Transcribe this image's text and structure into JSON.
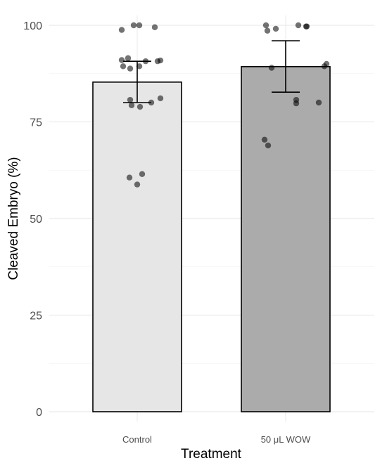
{
  "chart_data": {
    "type": "bar",
    "title": "",
    "xlabel": "Treatment",
    "ylabel": "Cleaved Embryo (%)",
    "ylim": [
      0,
      100
    ],
    "yticks": [
      0,
      25,
      50,
      75,
      100
    ],
    "grid": true,
    "legend": "none",
    "categories": [
      "Control",
      "50 μL WOW"
    ],
    "values": [
      85.3,
      89.3
    ],
    "error_bars": [
      {
        "low": 80.0,
        "high": 90.7
      },
      {
        "low": 82.7,
        "high": 96.0
      }
    ],
    "bar_colors": [
      "#e6e6e6",
      "#ababab"
    ],
    "points": [
      [
        {
          "x_offset": -0.22,
          "y": 98.8
        },
        {
          "x_offset": -0.05,
          "y": 100.0
        },
        {
          "x_offset": 0.03,
          "y": 100.0
        },
        {
          "x_offset": 0.25,
          "y": 99.5
        },
        {
          "x_offset": -0.22,
          "y": 91.0
        },
        {
          "x_offset": -0.13,
          "y": 91.5
        },
        {
          "x_offset": -0.2,
          "y": 89.4
        },
        {
          "x_offset": -0.1,
          "y": 88.8
        },
        {
          "x_offset": 0.03,
          "y": 89.4
        },
        {
          "x_offset": 0.12,
          "y": 90.7
        },
        {
          "x_offset": 0.29,
          "y": 90.7
        },
        {
          "x_offset": 0.33,
          "y": 90.9
        },
        {
          "x_offset": -0.1,
          "y": 80.7
        },
        {
          "x_offset": -0.08,
          "y": 79.3
        },
        {
          "x_offset": 0.04,
          "y": 78.9
        },
        {
          "x_offset": 0.2,
          "y": 80.0
        },
        {
          "x_offset": 0.33,
          "y": 81.1
        },
        {
          "x_offset": -0.11,
          "y": 60.6
        },
        {
          "x_offset": 0.0,
          "y": 58.8
        },
        {
          "x_offset": 0.07,
          "y": 61.5
        }
      ],
      [
        {
          "x_offset": -0.28,
          "y": 100.0
        },
        {
          "x_offset": -0.26,
          "y": 98.6
        },
        {
          "x_offset": -0.14,
          "y": 99.1
        },
        {
          "x_offset": 0.18,
          "y": 100.0
        },
        {
          "x_offset": 0.29,
          "y": 99.7
        },
        {
          "x_offset": 0.3,
          "y": 99.7
        },
        {
          "x_offset": -0.2,
          "y": 89.0
        },
        {
          "x_offset": 0.55,
          "y": 89.4
        },
        {
          "x_offset": 0.58,
          "y": 90.0
        },
        {
          "x_offset": 0.15,
          "y": 80.7
        },
        {
          "x_offset": 0.15,
          "y": 79.8
        },
        {
          "x_offset": 0.47,
          "y": 80.0
        },
        {
          "x_offset": -0.3,
          "y": 70.4
        },
        {
          "x_offset": -0.25,
          "y": 68.9
        }
      ]
    ]
  }
}
